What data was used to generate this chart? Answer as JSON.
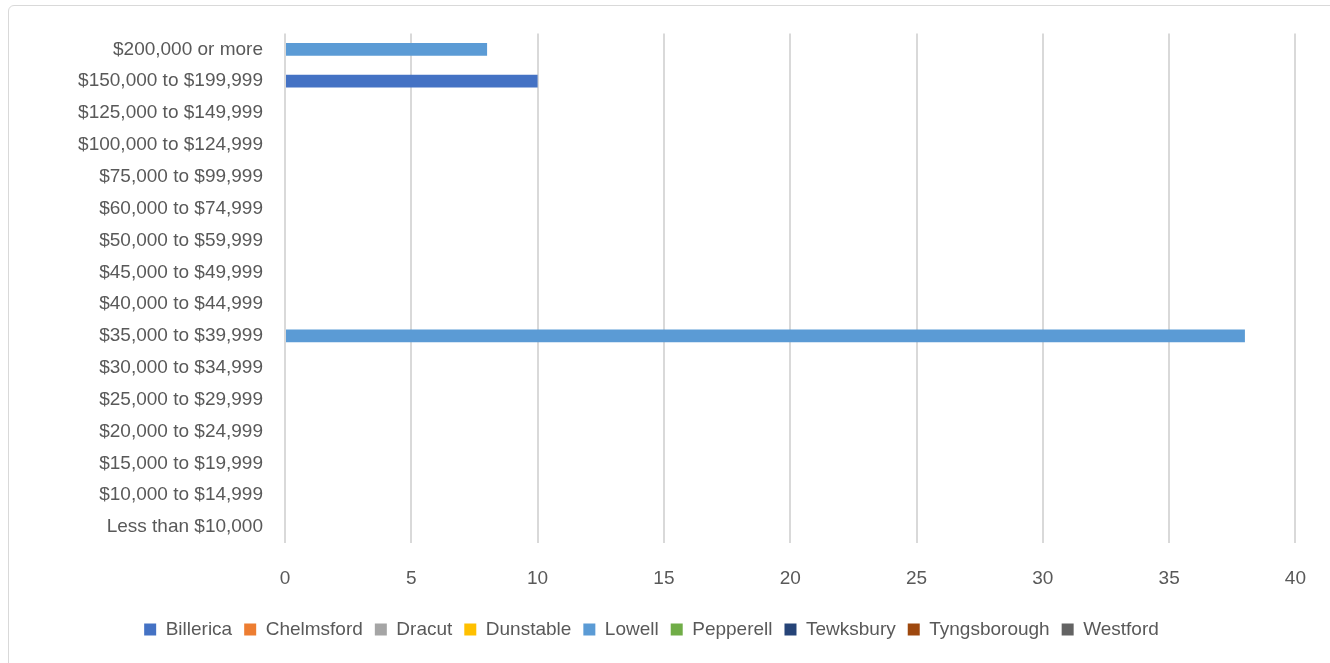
{
  "chart_data": {
    "type": "bar",
    "orientation": "horizontal",
    "categories": [
      "$200,000 or more",
      "$150,000 to $199,999",
      "$125,000 to $149,999",
      "$100,000 to $124,999",
      "$75,000 to $99,999",
      "$60,000 to $74,999",
      "$50,000 to $59,999",
      "$45,000 to $49,999",
      "$40,000 to $44,999",
      "$35,000 to $39,999",
      "$30,000 to $34,999",
      "$25,000 to $29,999",
      "$20,000 to $24,999",
      "$15,000 to $19,999",
      "$10,000 to $14,999",
      "Less than $10,000"
    ],
    "series": [
      {
        "name": "Billerica",
        "color": "#4472c4",
        "values": [
          null,
          10,
          null,
          null,
          null,
          null,
          null,
          null,
          null,
          null,
          null,
          null,
          null,
          null,
          null,
          null
        ]
      },
      {
        "name": "Chelmsford",
        "color": "#ed7d31",
        "values": [
          null,
          null,
          null,
          null,
          null,
          null,
          null,
          null,
          null,
          null,
          null,
          null,
          null,
          null,
          null,
          null
        ]
      },
      {
        "name": "Dracut",
        "color": "#a5a5a5",
        "values": [
          null,
          null,
          null,
          null,
          null,
          null,
          null,
          null,
          null,
          null,
          null,
          null,
          null,
          null,
          null,
          null
        ]
      },
      {
        "name": "Dunstable",
        "color": "#ffc000",
        "values": [
          null,
          null,
          null,
          null,
          null,
          null,
          null,
          null,
          null,
          null,
          null,
          null,
          null,
          null,
          null,
          null
        ]
      },
      {
        "name": "Lowell",
        "color": "#5b9bd5",
        "values": [
          8,
          null,
          null,
          null,
          null,
          null,
          null,
          null,
          null,
          38,
          null,
          null,
          null,
          null,
          null,
          null
        ]
      },
      {
        "name": "Pepperell",
        "color": "#70ad47",
        "values": [
          null,
          null,
          null,
          null,
          null,
          null,
          null,
          null,
          null,
          null,
          null,
          null,
          null,
          null,
          null,
          null
        ]
      },
      {
        "name": "Tewksbury",
        "color": "#264478",
        "values": [
          null,
          null,
          null,
          null,
          null,
          null,
          null,
          null,
          null,
          null,
          null,
          null,
          null,
          null,
          null,
          null
        ]
      },
      {
        "name": "Tyngsborough",
        "color": "#9e480e",
        "values": [
          null,
          null,
          null,
          null,
          null,
          null,
          null,
          null,
          null,
          null,
          null,
          null,
          null,
          null,
          null,
          null
        ]
      },
      {
        "name": "Westford",
        "color": "#636363",
        "values": [
          null,
          null,
          null,
          null,
          null,
          null,
          null,
          null,
          null,
          null,
          null,
          null,
          null,
          null,
          null,
          null
        ]
      }
    ],
    "xlim": [
      0,
      40
    ],
    "xticks": [
      0,
      5,
      10,
      15,
      20,
      25,
      30,
      35,
      40
    ],
    "grid": "x",
    "legend": "bottom"
  }
}
